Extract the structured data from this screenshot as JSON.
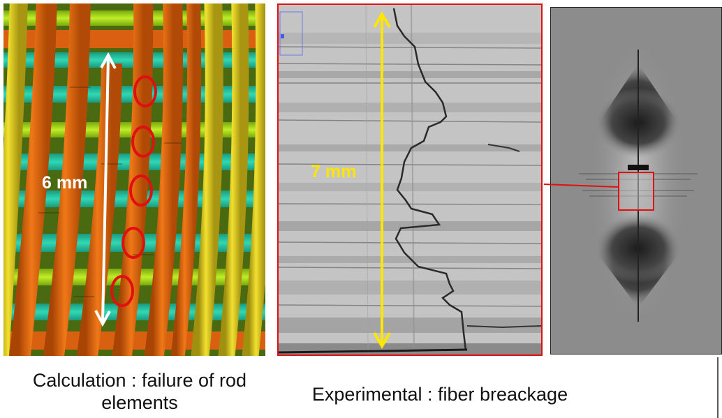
{
  "calc_panel": {
    "dimension_label": "6 mm"
  },
  "exp_panel": {
    "dimension_label": "7 mm"
  },
  "captions": {
    "calculation": "Calculation : failure of rod elements",
    "experimental": "Experimental : fiber breackage"
  },
  "colors": {
    "rod_orange": "#e0670e",
    "rod_yellow": "#e6d21e",
    "rod_green": "#b4e61e",
    "rod_cyan": "#26c8a8",
    "failure_marker": "#e01010",
    "arrow_white": "#ffffff",
    "arrow_yellow": "#ffe600"
  }
}
